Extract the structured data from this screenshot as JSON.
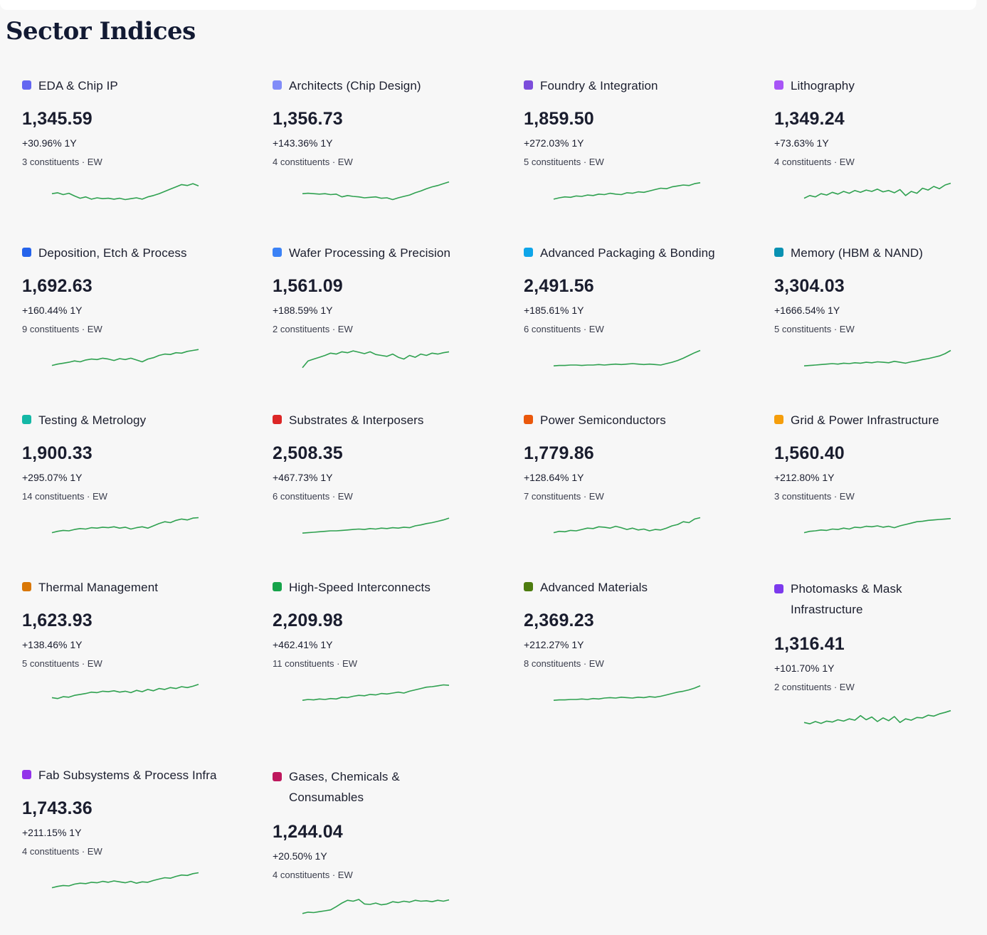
{
  "page": {
    "title": "Sector Indices"
  },
  "colors": {
    "sparkline": "#2fa150"
  },
  "sectors": [
    {
      "name": "EDA & Chip IP",
      "value": "1,345.59",
      "change": "+30.96% 1Y",
      "meta": "3 constituents · EW",
      "color": "#6366f1",
      "trend": [
        40,
        42,
        38,
        41,
        35,
        30,
        33,
        28,
        31,
        29,
        30,
        28,
        30,
        27,
        29,
        31,
        28,
        33,
        36,
        40,
        45,
        50,
        55,
        60,
        58,
        62,
        57
      ]
    },
    {
      "name": "Architects (Chip Design)",
      "value": "1,356.73",
      "change": "+143.36% 1Y",
      "meta": "4 constituents · EW",
      "color": "#818cf8",
      "trend": [
        40,
        41,
        40,
        39,
        40,
        38,
        39,
        33,
        36,
        34,
        33,
        31,
        32,
        33,
        30,
        31,
        27,
        31,
        34,
        37,
        42,
        46,
        51,
        55,
        58,
        62,
        66
      ]
    },
    {
      "name": "Foundry & Integration",
      "value": "1,859.50",
      "change": "+272.03% 1Y",
      "meta": "5 constituents · EW",
      "color": "#7c4ddb",
      "trend": [
        28,
        31,
        33,
        32,
        35,
        34,
        37,
        36,
        39,
        38,
        41,
        39,
        38,
        42,
        41,
        44,
        43,
        46,
        49,
        52,
        51,
        55,
        57,
        59,
        58,
        62,
        64
      ]
    },
    {
      "name": "Lithography",
      "value": "1,349.24",
      "change": "+73.63% 1Y",
      "meta": "4 constituents · EW",
      "color": "#a855f7",
      "trend": [
        30,
        36,
        33,
        40,
        37,
        43,
        39,
        45,
        41,
        47,
        43,
        48,
        45,
        50,
        44,
        47,
        42,
        49,
        36,
        45,
        41,
        52,
        48,
        56,
        51,
        59,
        63
      ]
    },
    {
      "name": "Deposition, Etch & Process",
      "value": "1,692.63",
      "change": "+160.44% 1Y",
      "meta": "9 constituents · EW",
      "color": "#2563eb",
      "trend": [
        30,
        33,
        35,
        37,
        40,
        38,
        42,
        44,
        43,
        46,
        44,
        41,
        45,
        43,
        46,
        42,
        38,
        44,
        47,
        52,
        55,
        54,
        58,
        57,
        61,
        63,
        65
      ]
    },
    {
      "name": "Wafer Processing & Precision",
      "value": "1,561.09",
      "change": "+188.59% 1Y",
      "meta": "2 constituents · EW",
      "color": "#3b82f6",
      "trend": [
        25,
        40,
        44,
        48,
        52,
        57,
        55,
        60,
        58,
        62,
        59,
        56,
        60,
        54,
        52,
        50,
        55,
        48,
        44,
        52,
        48,
        55,
        52,
        57,
        55,
        58,
        60
      ]
    },
    {
      "name": "Advanced Packaging & Bonding",
      "value": "2,491.56",
      "change": "+185.61% 1Y",
      "meta": "6 constituents · EW",
      "color": "#0ea5e9",
      "trend": [
        29,
        30,
        30,
        31,
        31,
        30,
        31,
        31,
        32,
        31,
        32,
        33,
        32,
        33,
        34,
        33,
        32,
        33,
        32,
        31,
        34,
        37,
        41,
        46,
        52,
        58,
        63
      ]
    },
    {
      "name": "Memory (HBM & NAND)",
      "value": "3,304.03",
      "change": "+1666.54% 1Y",
      "meta": "5 constituents · EW",
      "color": "#0891b2",
      "trend": [
        29,
        30,
        31,
        32,
        33,
        34,
        33,
        35,
        34,
        36,
        35,
        37,
        36,
        38,
        37,
        36,
        39,
        37,
        35,
        38,
        40,
        43,
        45,
        48,
        51,
        56,
        63
      ]
    },
    {
      "name": "Testing & Metrology",
      "value": "1,900.33",
      "change": "+295.07% 1Y",
      "meta": "14 constituents · EW",
      "color": "#14b8a6",
      "trend": [
        30,
        33,
        35,
        34,
        37,
        39,
        38,
        41,
        40,
        42,
        41,
        43,
        40,
        42,
        38,
        41,
        43,
        40,
        45,
        50,
        54,
        52,
        57,
        60,
        58,
        62,
        63
      ]
    },
    {
      "name": "Substrates & Interposers",
      "value": "2,508.35",
      "change": "+467.73% 1Y",
      "meta": "6 constituents · EW",
      "color": "#dc2626",
      "trend": [
        29,
        30,
        31,
        32,
        33,
        34,
        34,
        35,
        36,
        37,
        38,
        37,
        39,
        38,
        40,
        39,
        41,
        40,
        42,
        41,
        45,
        47,
        50,
        52,
        55,
        58,
        62
      ]
    },
    {
      "name": "Power Semiconductors",
      "value": "1,779.86",
      "change": "+128.64% 1Y",
      "meta": "7 constituents · EW",
      "color": "#ea580c",
      "trend": [
        30,
        33,
        32,
        35,
        34,
        37,
        40,
        39,
        43,
        42,
        40,
        44,
        41,
        37,
        40,
        36,
        38,
        34,
        37,
        36,
        40,
        45,
        48,
        54,
        52,
        60,
        63
      ]
    },
    {
      "name": "Grid & Power Infrastructure",
      "value": "1,560.40",
      "change": "+212.80% 1Y",
      "meta": "3 constituents · EW",
      "color": "#f59e0b",
      "trend": [
        30,
        33,
        34,
        36,
        35,
        38,
        37,
        40,
        38,
        42,
        41,
        44,
        43,
        45,
        42,
        44,
        41,
        45,
        48,
        51,
        54,
        55,
        57,
        58,
        59,
        60,
        61
      ]
    },
    {
      "name": "Thermal Management",
      "value": "1,623.93",
      "change": "+138.46% 1Y",
      "meta": "5 constituents · EW",
      "color": "#d97706",
      "trend": [
        35,
        33,
        37,
        36,
        40,
        42,
        44,
        47,
        46,
        49,
        48,
        50,
        47,
        49,
        46,
        51,
        48,
        53,
        50,
        55,
        53,
        57,
        55,
        59,
        57,
        60,
        64
      ]
    },
    {
      "name": "High-Speed Interconnects",
      "value": "2,209.98",
      "change": "+462.41% 1Y",
      "meta": "11 constituents · EW",
      "color": "#16a34a",
      "trend": [
        29,
        31,
        30,
        32,
        31,
        33,
        32,
        36,
        35,
        38,
        40,
        39,
        42,
        41,
        44,
        43,
        45,
        47,
        45,
        49,
        52,
        55,
        58,
        59,
        61,
        63,
        62
      ]
    },
    {
      "name": "Advanced Materials",
      "value": "2,369.23",
      "change": "+212.27% 1Y",
      "meta": "8 constituents · EW",
      "color": "#4d7c0f",
      "trend": [
        29,
        30,
        30,
        31,
        31,
        32,
        31,
        33,
        32,
        34,
        35,
        34,
        36,
        35,
        34,
        36,
        35,
        37,
        36,
        38,
        41,
        44,
        47,
        49,
        52,
        56,
        61
      ]
    },
    {
      "name": "Photomasks & Mask Infrastructure",
      "value": "1,316.41",
      "change": "+101.70% 1Y",
      "meta": "2 constituents · EW",
      "color": "#7c3aed",
      "trend": [
        32,
        29,
        34,
        30,
        35,
        33,
        38,
        35,
        40,
        37,
        47,
        38,
        44,
        34,
        42,
        36,
        45,
        32,
        40,
        37,
        43,
        42,
        48,
        46,
        51,
        54,
        58
      ]
    },
    {
      "name": "Fab Subsystems & Process Infra",
      "value": "1,743.36",
      "change": "+211.15% 1Y",
      "meta": "4 constituents · EW",
      "color": "#9333ea",
      "trend": [
        30,
        33,
        35,
        34,
        38,
        40,
        39,
        42,
        41,
        44,
        42,
        45,
        43,
        41,
        44,
        40,
        43,
        42,
        46,
        49,
        52,
        51,
        55,
        58,
        57,
        61,
        63
      ]
    },
    {
      "name": "Gases, Chemicals & Consumables",
      "value": "1,244.04",
      "change": "+20.50% 1Y",
      "meta": "4 constituents · EW",
      "color": "#be185d",
      "trend": [
        25,
        28,
        27,
        29,
        31,
        33,
        40,
        48,
        54,
        52,
        56,
        46,
        45,
        48,
        44,
        46,
        51,
        49,
        52,
        50,
        54,
        52,
        53,
        51,
        54,
        52,
        55
      ]
    }
  ]
}
